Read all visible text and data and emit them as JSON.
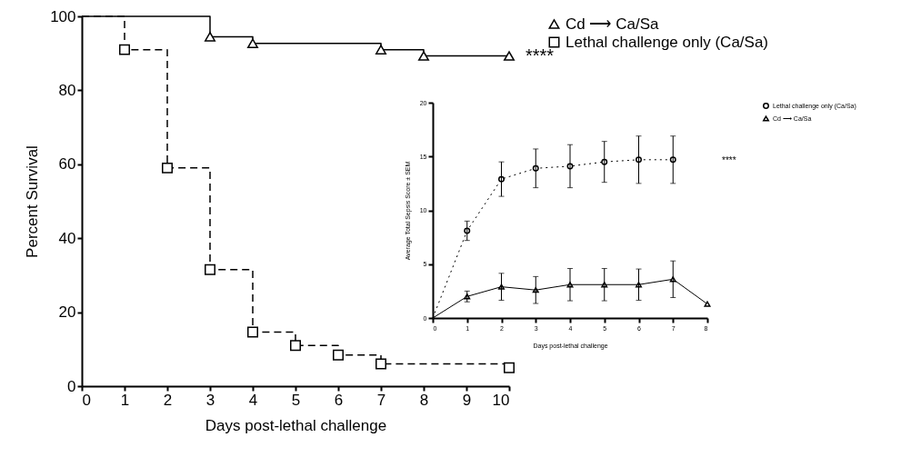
{
  "chart_data": [
    {
      "type": "step",
      "xlabel": "Days post-lethal challenge",
      "ylabel": "Percent Survival",
      "xlim": [
        0,
        10
      ],
      "xticks": [
        0,
        1,
        2,
        3,
        4,
        5,
        6,
        7,
        8,
        9,
        10
      ],
      "ylim": [
        0,
        100
      ],
      "yticks": [
        0,
        20,
        40,
        60,
        80,
        100
      ],
      "legend": "right",
      "series": [
        {
          "name": "Cd ⟶ Ca/Sa",
          "color": "#000000",
          "line_style": "solid",
          "marker": "triangle",
          "x": [
            0,
            3,
            4,
            7,
            8,
            10
          ],
          "values": [
            100,
            94.5,
            92.7,
            91,
            89.3,
            89.3
          ]
        },
        {
          "name": "Lethal challenge only (Ca/Sa)",
          "color": "#000000",
          "line_style": "dashed",
          "marker": "square",
          "x": [
            0,
            1,
            2,
            3,
            4,
            5,
            6,
            7,
            10
          ],
          "values": [
            100,
            91,
            59,
            31.5,
            14.6,
            11,
            8.4,
            6,
            5
          ]
        }
      ],
      "annotations": [
        "****"
      ]
    },
    {
      "type": "line",
      "xlabel": "Days post-lethal challenge",
      "ylabel": "Average Total Sepsis Score ± SEM",
      "xlim": [
        0,
        8
      ],
      "xticks": [
        0,
        1,
        2,
        3,
        4,
        5,
        6,
        7,
        8
      ],
      "ylim": [
        0,
        20
      ],
      "yticks": [
        0,
        5,
        10,
        15,
        20
      ],
      "legend": "right",
      "series": [
        {
          "name": "Lethal challenge only (Ca/Sa)",
          "color": "#000000",
          "line_style": "dotted",
          "marker": "circle",
          "x": [
            0,
            1,
            2,
            3,
            4,
            5,
            6,
            7
          ],
          "values": [
            0,
            8.1,
            12.9,
            13.9,
            14.1,
            14.5,
            14.7,
            14.7
          ],
          "errors": [
            null,
            0.9,
            1.6,
            1.8,
            2,
            1.9,
            2.2,
            2.2
          ]
        },
        {
          "name": "Cd ⟶ Ca/Sa",
          "color": "#000000",
          "line_style": "solid",
          "marker": "triangle",
          "x": [
            0,
            1,
            2,
            3,
            4,
            5,
            6,
            7,
            8
          ],
          "values": [
            0,
            2,
            2.9,
            2.6,
            3.1,
            3.1,
            3.1,
            3.6,
            1.3
          ],
          "errors": [
            null,
            0.5,
            1.25,
            1.25,
            1.5,
            1.5,
            1.45,
            1.7,
            null
          ]
        }
      ],
      "annotations": [
        "****"
      ]
    }
  ]
}
